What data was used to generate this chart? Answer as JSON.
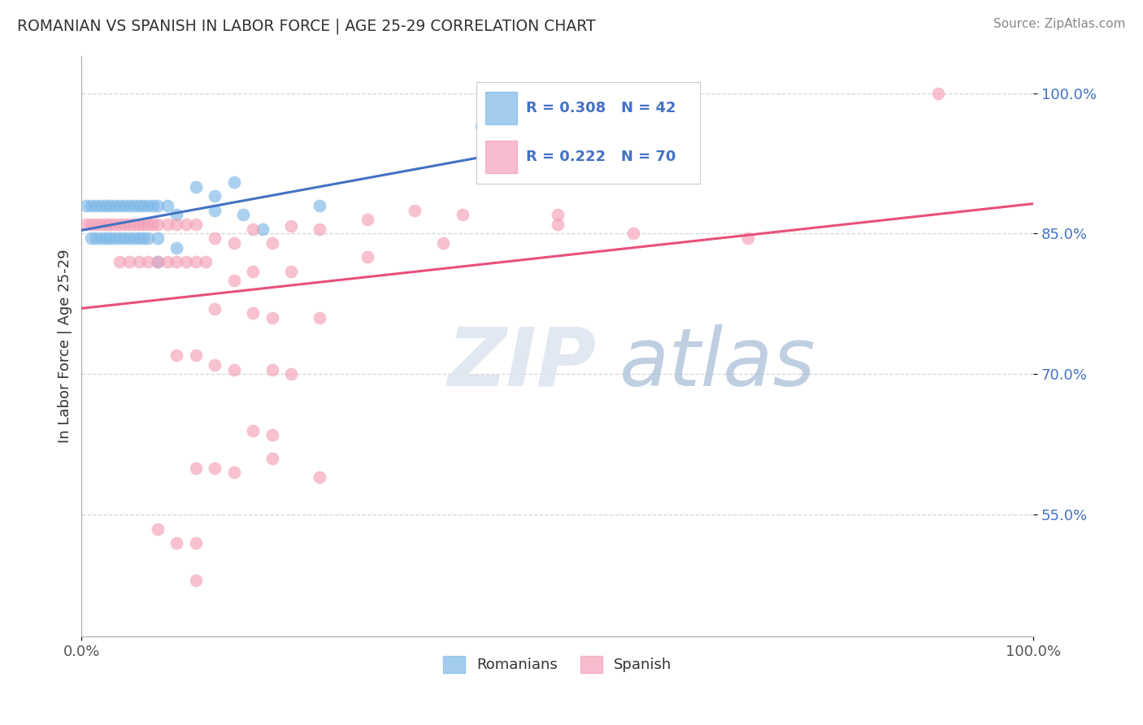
{
  "title": "ROMANIAN VS SPANISH IN LABOR FORCE | AGE 25-29 CORRELATION CHART",
  "source": "Source: ZipAtlas.com",
  "ylabel": "In Labor Force | Age 25-29",
  "xlim": [
    0.0,
    1.0
  ],
  "ylim": [
    0.42,
    1.04
  ],
  "x_tick_labels": [
    "0.0%",
    "100.0%"
  ],
  "y_ticks": [
    0.55,
    0.7,
    0.85,
    1.0
  ],
  "y_tick_labels": [
    "55.0%",
    "70.0%",
    "85.0%",
    "100.0%"
  ],
  "R_romanian": 0.308,
  "N_romanian": 42,
  "R_spanish": 0.222,
  "N_spanish": 70,
  "romanian_color": "#7db8e8",
  "spanish_color": "#f4a0b8",
  "trend_romanian_color": "#4472c4",
  "trend_spanish_color": "#e8507a",
  "legend_text_color": "#4472c4",
  "background_color": "#ffffff",
  "grid_color": "#cccccc",
  "title_color": "#333333",
  "watermark_zip_color": "#d0d8e8",
  "watermark_atlas_color": "#aab8d0",
  "rom_x": [
    0.005,
    0.01,
    0.015,
    0.02,
    0.025,
    0.03,
    0.035,
    0.04,
    0.045,
    0.05,
    0.055,
    0.06,
    0.065,
    0.07,
    0.075,
    0.08,
    0.01,
    0.015,
    0.02,
    0.025,
    0.03,
    0.035,
    0.04,
    0.045,
    0.05,
    0.055,
    0.06,
    0.065,
    0.07,
    0.08,
    0.09,
    0.1,
    0.12,
    0.14,
    0.16,
    0.19,
    0.08,
    0.1,
    0.14,
    0.17,
    0.25,
    0.42
  ],
  "rom_y": [
    0.88,
    0.88,
    0.88,
    0.88,
    0.88,
    0.88,
    0.88,
    0.88,
    0.88,
    0.88,
    0.88,
    0.88,
    0.88,
    0.88,
    0.88,
    0.88,
    0.845,
    0.845,
    0.845,
    0.845,
    0.845,
    0.845,
    0.845,
    0.845,
    0.845,
    0.845,
    0.845,
    0.845,
    0.845,
    0.845,
    0.88,
    0.87,
    0.9,
    0.875,
    0.905,
    0.855,
    0.82,
    0.835,
    0.89,
    0.87,
    0.88,
    0.965
  ],
  "spa_x": [
    0.005,
    0.01,
    0.015,
    0.02,
    0.025,
    0.03,
    0.035,
    0.04,
    0.045,
    0.05,
    0.055,
    0.06,
    0.065,
    0.07,
    0.075,
    0.08,
    0.09,
    0.1,
    0.11,
    0.12,
    0.04,
    0.05,
    0.06,
    0.07,
    0.08,
    0.09,
    0.1,
    0.11,
    0.12,
    0.13,
    0.14,
    0.16,
    0.18,
    0.2,
    0.22,
    0.25,
    0.3,
    0.35,
    0.4,
    0.5,
    0.16,
    0.18,
    0.22,
    0.3,
    0.38,
    0.5,
    0.58,
    0.7,
    0.14,
    0.18,
    0.2,
    0.25,
    0.1,
    0.12,
    0.14,
    0.16,
    0.2,
    0.22,
    0.2,
    0.18,
    0.12,
    0.14,
    0.16,
    0.2,
    0.25,
    0.08,
    0.1,
    0.12,
    0.9,
    0.12
  ],
  "spa_y": [
    0.86,
    0.86,
    0.86,
    0.86,
    0.86,
    0.86,
    0.86,
    0.86,
    0.86,
    0.86,
    0.86,
    0.86,
    0.86,
    0.86,
    0.86,
    0.86,
    0.86,
    0.86,
    0.86,
    0.86,
    0.82,
    0.82,
    0.82,
    0.82,
    0.82,
    0.82,
    0.82,
    0.82,
    0.82,
    0.82,
    0.845,
    0.84,
    0.855,
    0.84,
    0.858,
    0.855,
    0.865,
    0.875,
    0.87,
    0.86,
    0.8,
    0.81,
    0.81,
    0.825,
    0.84,
    0.87,
    0.85,
    0.845,
    0.77,
    0.765,
    0.76,
    0.76,
    0.72,
    0.72,
    0.71,
    0.705,
    0.705,
    0.7,
    0.635,
    0.64,
    0.6,
    0.6,
    0.595,
    0.61,
    0.59,
    0.535,
    0.52,
    0.52,
    1.0,
    0.48
  ]
}
